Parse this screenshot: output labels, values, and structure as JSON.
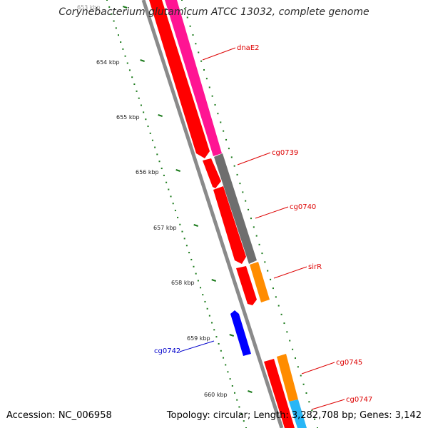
{
  "title": "Corynebacterium glutamicum ATCC 13032, complete genome",
  "footer": {
    "accession": "Accession: NC_006958",
    "summary": "Topology: circular; Length: 3,282,708 bp; Genes: 3,142"
  },
  "ruler": {
    "unit": "kbp",
    "ticks": [
      "653 kbp",
      "654 kbp",
      "655 kbp",
      "656 kbp",
      "657 kbp",
      "658 kbp",
      "659 kbp",
      "660 kbp"
    ]
  },
  "genes": [
    {
      "label": "dnaE2",
      "strand": "+",
      "color": "#ff1493",
      "label_color": "#dd0000"
    },
    {
      "label": "cg0739",
      "strand": "+",
      "color": "#6e6e6e",
      "label_color": "#dd0000"
    },
    {
      "label": "cg0740",
      "strand": "+",
      "color": "#6e6e6e",
      "label_color": "#dd0000"
    },
    {
      "label": "sirR",
      "strand": "+",
      "color": "#ff8c00",
      "label_color": "#dd0000"
    },
    {
      "label": "cg0742",
      "strand": "-",
      "color": "#0000ff",
      "label_color": "#0000cc"
    },
    {
      "label": "cg0745",
      "strand": "+",
      "color": "#ff8c00",
      "label_color": "#dd0000"
    },
    {
      "label": "cg0747",
      "strand": "+",
      "color": "#29b6f6",
      "label_color": "#dd0000"
    }
  ],
  "colors": {
    "cds_red": "#ff0000",
    "backbone": "#8a8a8a",
    "ruler_tick": "#1a7a1a"
  }
}
